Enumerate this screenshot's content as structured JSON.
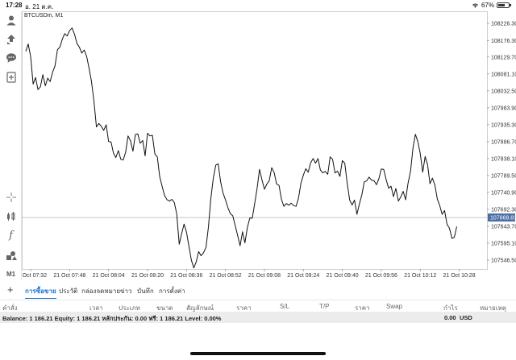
{
  "status_bar": {
    "time": "17:28",
    "date": "อ. 21 ต.ค.",
    "battery": "67%",
    "battery_level": 0.67
  },
  "chart": {
    "symbol": "BTCUSDm, M1",
    "current_price": "107668.83",
    "y_ticks": [
      "108226.30",
      "108176.30",
      "108129.70",
      "108081.10",
      "108032.50",
      "107983.90",
      "107935.30",
      "107886.70",
      "107838.10",
      "107789.50",
      "107740.90",
      "107692.30",
      "107643.70",
      "107595.10",
      "107546.50"
    ],
    "x_ticks": [
      "21 Oct 07:32",
      "21 Oct 07:48",
      "21 Oct 08:04",
      "21 Oct 08:20",
      "21 Oct 08:36",
      "21 Oct 08:52",
      "21 Oct 09:08",
      "21 Oct 09:24",
      "21 Oct 09:40",
      "21 Oct 09:56",
      "21 Oct 10:12",
      "21 Oct 10:28"
    ]
  },
  "chart_data": {
    "type": "line",
    "title": "",
    "xlabel": "",
    "ylabel": "",
    "x_start": "21 Oct 07:30",
    "interval_minutes": 1,
    "ylim": [
      107530,
      108250
    ],
    "grid": false,
    "current_price": 107668.83,
    "values": [
      108146,
      108167,
      108131,
      108052,
      108071,
      108036,
      108044,
      108079,
      108047,
      108069,
      108059,
      108086,
      108104,
      108151,
      108158,
      108181,
      108197,
      108190,
      108206,
      108213,
      108195,
      108169,
      108158,
      108141,
      108150,
      108131,
      108097,
      108059,
      108001,
      107929,
      107939,
      107931,
      107919,
      107935,
      107887,
      107886,
      107854,
      107841,
      107861,
      107836,
      107834,
      107856,
      107903,
      107889,
      107859,
      107907,
      107909,
      107882,
      107890,
      107846,
      107911,
      107903,
      107905,
      107851,
      107843,
      107786,
      107758,
      107732,
      107720,
      107716,
      107721,
      107712,
      107679,
      107592,
      107623,
      107650,
      107627,
      107587,
      107546,
      107524,
      107542,
      107571,
      107559,
      107568,
      107583,
      107641,
      107723,
      107781,
      107819,
      107823,
      107772,
      107739,
      107720,
      107697,
      107680,
      107674,
      107646,
      107618,
      107588,
      107628,
      107596,
      107640,
      107667,
      107667,
      107709,
      107753,
      107807,
      107777,
      107750,
      107765,
      107775,
      107812,
      107798,
      107765,
      107761,
      107721,
      107701,
      107709,
      107704,
      107710,
      107703,
      107701,
      107724,
      107768,
      107791,
      107809,
      107799,
      107826,
      107838,
      107825,
      107838,
      107805,
      107797,
      107801,
      107793,
      107843,
      107836,
      107797,
      107802,
      107787,
      107832,
      107825,
      107768,
      107719,
      107705,
      107719,
      107678,
      107707,
      107734,
      107771,
      107774,
      107785,
      107776,
      107775,
      107763,
      107780,
      107808,
      107807,
      107777,
      107753,
      107759,
      107729,
      107752,
      107716,
      107728,
      107744,
      107720,
      107767,
      107802,
      107868,
      107908,
      107887,
      107853,
      107799,
      107844,
      107821,
      107766,
      107782,
      107762,
      107722,
      107703,
      107678,
      107689,
      107649,
      107638,
      107609,
      107612,
      107643
    ]
  },
  "tabs": [
    {
      "label": "การซื้อขาย",
      "active": true
    },
    {
      "label": "ประวัติ",
      "active": false
    },
    {
      "label": "กล่องจดหมาย",
      "active": false
    },
    {
      "label": "ข่าว",
      "active": false
    },
    {
      "label": "บันทึก",
      "active": false
    },
    {
      "label": "การตั้งค่า",
      "active": false
    }
  ],
  "columns": [
    "คำสั่ง",
    "เวลา",
    "ประเภท",
    "ขนาด",
    "สัญลักษณ์",
    "ราคา",
    "S/L",
    "T/P",
    "ราคา",
    "Swap",
    "กำไร",
    "หมายเหตุ"
  ],
  "balance_bar": {
    "summary": "Balance: 1 186.21 Equity: 1 186.21 หลักประกัน: 0.00 ฟรี: 1 186.21 Level: 0.00%",
    "amount": "0.00",
    "currency": "USD"
  },
  "toolbar": {
    "m1_label": "M1"
  },
  "colors": {
    "accent": "#1a6fd1",
    "line": "#111111",
    "price_marker": "#4a6fa5"
  }
}
